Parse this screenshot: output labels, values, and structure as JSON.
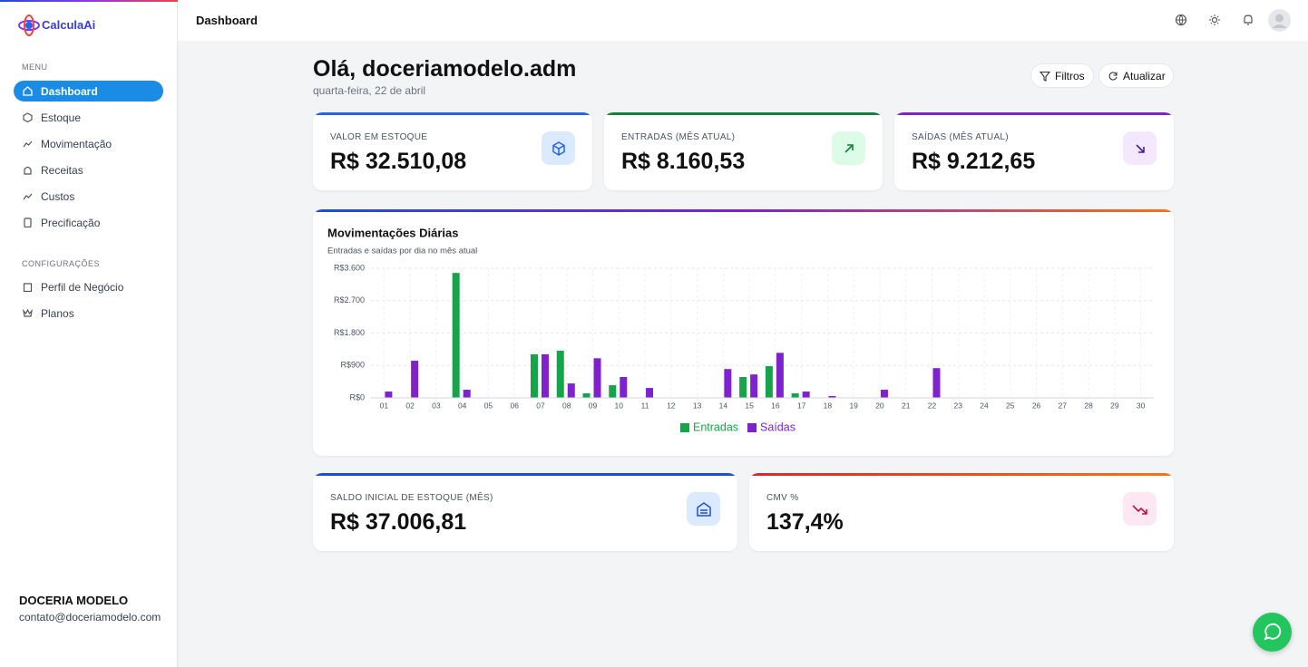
{
  "sidebar": {
    "brand": "CalculaAi",
    "menu_heading": "MENU",
    "menu": [
      "Dashboard",
      "Estoque",
      "Movimentação",
      "Receitas",
      "Custos",
      "Precificação"
    ],
    "config_heading": "CONFIGURAÇÕES",
    "config": [
      "Perfil de Negócio",
      "Planos"
    ],
    "business_name": "DOCERIA MODELO",
    "business_email": "contato@doceriamodelo.com"
  },
  "header": {
    "title": "Dashboard"
  },
  "greeting": {
    "title": "Olá, doceriamodelo.adm",
    "date": "quarta-feira, 22 de abril"
  },
  "buttons": [
    "Filtros",
    "Atualizar"
  ],
  "cards": [
    {
      "label": "VALOR EM ESTOQUE",
      "value": "R$ 32.510,08"
    },
    {
      "label": "ENTRADAS (MÊS ATUAL)",
      "value": "R$ 8.160,53"
    },
    {
      "label": "SAÍDAS (MÊS ATUAL)",
      "value": "R$ 9.212,65"
    },
    {
      "label": "SALDO INICIAL DE ESTOQUE (MÊS)",
      "value": "R$ 37.006,81"
    },
    {
      "label": "CMV %",
      "value": "137,4%"
    }
  ],
  "chart_data": {
    "type": "bar",
    "title": "Movimentações Diárias",
    "subtitle": "Entradas e saídas por dia no mês atual",
    "categories": [
      "01",
      "02",
      "03",
      "04",
      "05",
      "06",
      "07",
      "08",
      "09",
      "10",
      "11",
      "12",
      "13",
      "14",
      "15",
      "16",
      "17",
      "18",
      "19",
      "20",
      "21",
      "22",
      "23",
      "24",
      "25",
      "26",
      "27",
      "28",
      "29",
      "30"
    ],
    "series": [
      {
        "name": "Entradas",
        "color": "#16a34a",
        "values": [
          0,
          0,
          0,
          3470,
          0,
          0,
          1210,
          1310,
          125,
          350,
          0,
          0,
          0,
          0,
          580,
          880,
          125,
          0,
          0,
          0,
          0,
          0,
          0,
          0,
          0,
          0,
          0,
          0,
          0,
          0
        ]
      },
      {
        "name": "Saídas",
        "color": "#7e22ce",
        "values": [
          175,
          1030,
          0,
          225,
          0,
          0,
          1210,
          400,
          1100,
          580,
          275,
          0,
          0,
          800,
          650,
          1250,
          175,
          50,
          0,
          225,
          0,
          825,
          0,
          0,
          0,
          0,
          0,
          0,
          0,
          0
        ]
      }
    ],
    "ylim": [
      0,
      3600
    ],
    "yticks": [
      {
        "value": 0,
        "label": "R$0"
      },
      {
        "value": 900,
        "label": "R$900"
      },
      {
        "value": 1800,
        "label": "R$1.800"
      },
      {
        "value": 2700,
        "label": "R$2.700"
      },
      {
        "value": 3600,
        "label": "R$3.600"
      }
    ],
    "grid": true,
    "legend": "bottom"
  }
}
